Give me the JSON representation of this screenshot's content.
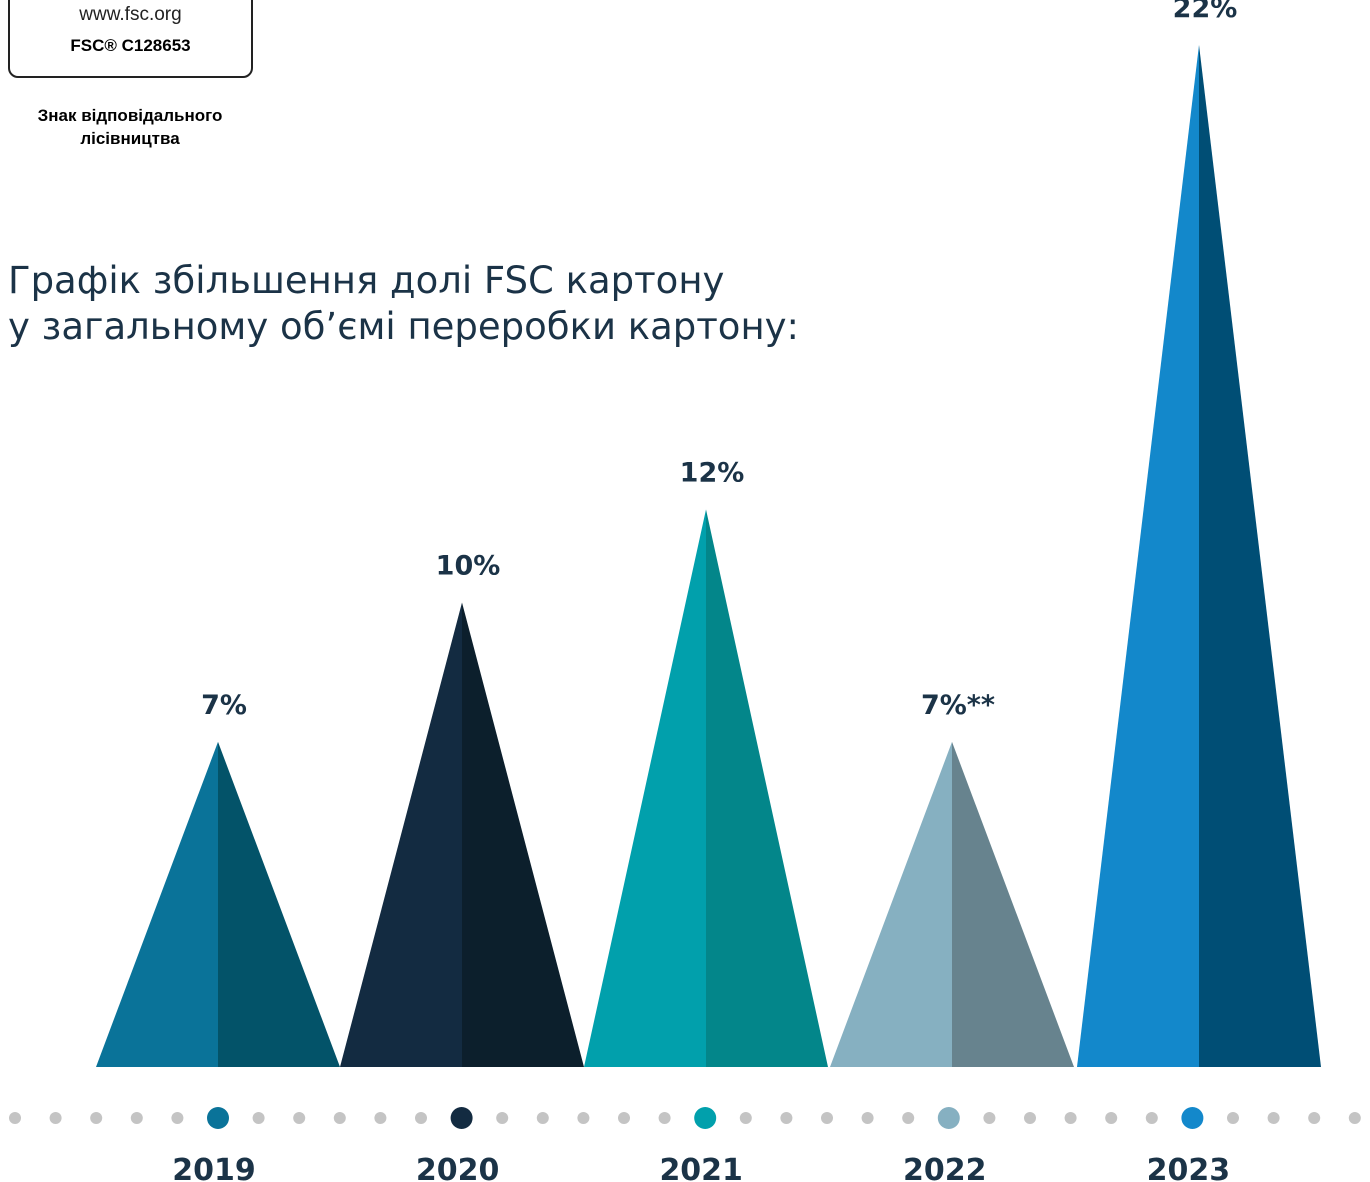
{
  "logo": {
    "url": "www.fsc.org",
    "code": "FSC® C128653",
    "caption": "Знак відповідального лісівництва"
  },
  "chart_data": {
    "type": "triangle",
    "title": [
      "Графік збільшення долі FSC картону",
      "у загальному об’ємі переробки картону:"
    ],
    "categories": [
      "2019",
      "2020",
      "2021",
      "2022",
      "2023"
    ],
    "values": [
      7,
      10,
      12,
      7,
      22
    ],
    "value_labels": [
      "7%",
      "10%",
      "12%",
      "7%**",
      "22%"
    ],
    "colors": [
      "#0a7399",
      "#132b41",
      "#01a0ac",
      "#86b0c1",
      "#1388cb"
    ],
    "shade_colors": [
      "#035369",
      "#0c1f2c",
      "#03868a",
      "#67838e",
      "#004e75"
    ]
  }
}
